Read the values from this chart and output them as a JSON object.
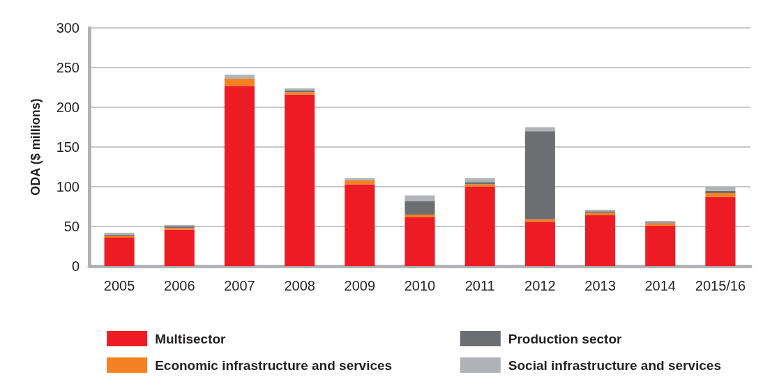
{
  "chart_data": {
    "type": "bar",
    "stacked": true,
    "ylabel": "ODA ($ millions)",
    "categories": [
      "2005",
      "2006",
      "2007",
      "2008",
      "2009",
      "2010",
      "2011",
      "2012",
      "2013",
      "2014",
      "2015/16"
    ],
    "series": [
      {
        "name": "Multisector",
        "color": "#ed1c24",
        "values": [
          36,
          46,
          227,
          216,
          103,
          62,
          100,
          56,
          64,
          51,
          87
        ]
      },
      {
        "name": "Economic infrastructure and services",
        "color": "#f58220",
        "values": [
          2,
          2,
          9,
          3,
          5,
          3,
          3,
          3,
          3,
          3,
          5
        ]
      },
      {
        "name": "Production sector",
        "color": "#6d6e71",
        "values": [
          2,
          2,
          0,
          2,
          0,
          17,
          3,
          111,
          2,
          1,
          3
        ]
      },
      {
        "name": "Social infrastructure and services",
        "color": "#b1b3b6",
        "values": [
          2,
          2,
          5,
          3,
          3,
          7,
          5,
          5,
          2,
          2,
          5
        ]
      }
    ],
    "ylim": [
      0,
      300
    ],
    "yticks": [
      0,
      50,
      100,
      150,
      200,
      250,
      300
    ],
    "grid": "y",
    "legend": "bottom"
  }
}
